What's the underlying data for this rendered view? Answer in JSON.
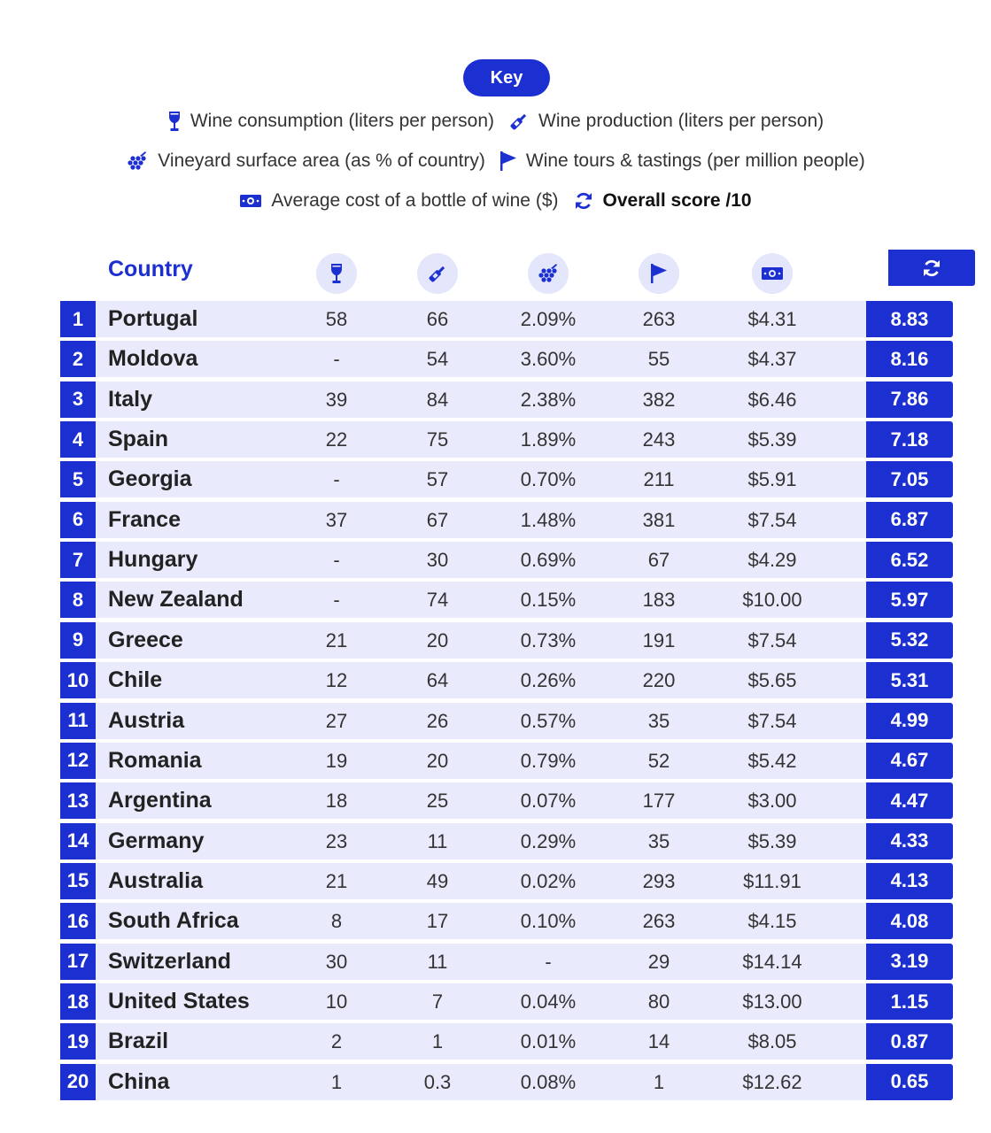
{
  "key": {
    "label": "Key",
    "items": [
      {
        "id": "consumption",
        "icon": "wine-glass-icon",
        "text": "Wine consumption (liters per person)"
      },
      {
        "id": "production",
        "icon": "wine-bottle-icon",
        "text": "Wine production (liters per person)"
      },
      {
        "id": "vineyard",
        "icon": "grapes-icon",
        "text": "Vineyard surface area (as % of country)"
      },
      {
        "id": "tours",
        "icon": "flag-icon",
        "text": "Wine tours & tastings (per million people)"
      },
      {
        "id": "cost",
        "icon": "banknote-icon",
        "text": "Average cost of a bottle of wine ($)"
      },
      {
        "id": "score",
        "icon": "refresh-icon",
        "text": "Overall score /10"
      }
    ]
  },
  "colors": {
    "accent": "#1c2fd1",
    "row_bg": "#e9eafc",
    "icon_circle": "#e4e6fb"
  },
  "chart_data": {
    "type": "table",
    "columns": [
      {
        "key": "rank",
        "label": ""
      },
      {
        "key": "country",
        "label": "Country"
      },
      {
        "key": "consumption",
        "icon": "wine-glass-icon"
      },
      {
        "key": "production",
        "icon": "wine-bottle-icon"
      },
      {
        "key": "vineyard",
        "icon": "grapes-icon"
      },
      {
        "key": "tours",
        "icon": "flag-icon"
      },
      {
        "key": "cost",
        "icon": "banknote-icon"
      },
      {
        "key": "score",
        "icon": "refresh-icon"
      }
    ],
    "rows": [
      {
        "rank": "1",
        "country": "Portugal",
        "consumption": "58",
        "production": "66",
        "vineyard": "2.09%",
        "tours": "263",
        "cost": "$4.31",
        "score": "8.83"
      },
      {
        "rank": "2",
        "country": "Moldova",
        "consumption": "-",
        "production": "54",
        "vineyard": "3.60%",
        "tours": "55",
        "cost": "$4.37",
        "score": "8.16"
      },
      {
        "rank": "3",
        "country": "Italy",
        "consumption": "39",
        "production": "84",
        "vineyard": "2.38%",
        "tours": "382",
        "cost": "$6.46",
        "score": "7.86"
      },
      {
        "rank": "4",
        "country": "Spain",
        "consumption": "22",
        "production": "75",
        "vineyard": "1.89%",
        "tours": "243",
        "cost": "$5.39",
        "score": "7.18"
      },
      {
        "rank": "5",
        "country": "Georgia",
        "consumption": "-",
        "production": "57",
        "vineyard": "0.70%",
        "tours": "211",
        "cost": "$5.91",
        "score": "7.05"
      },
      {
        "rank": "6",
        "country": "France",
        "consumption": "37",
        "production": "67",
        "vineyard": "1.48%",
        "tours": "381",
        "cost": "$7.54",
        "score": "6.87"
      },
      {
        "rank": "7",
        "country": "Hungary",
        "consumption": "-",
        "production": "30",
        "vineyard": "0.69%",
        "tours": "67",
        "cost": "$4.29",
        "score": "6.52"
      },
      {
        "rank": "8",
        "country": "New Zealand",
        "consumption": "-",
        "production": "74",
        "vineyard": "0.15%",
        "tours": "183",
        "cost": "$10.00",
        "score": "5.97"
      },
      {
        "rank": "9",
        "country": "Greece",
        "consumption": "21",
        "production": "20",
        "vineyard": "0.73%",
        "tours": "191",
        "cost": "$7.54",
        "score": "5.32"
      },
      {
        "rank": "10",
        "country": "Chile",
        "consumption": "12",
        "production": "64",
        "vineyard": "0.26%",
        "tours": "220",
        "cost": "$5.65",
        "score": "5.31"
      },
      {
        "rank": "11",
        "country": "Austria",
        "consumption": "27",
        "production": "26",
        "vineyard": "0.57%",
        "tours": "35",
        "cost": "$7.54",
        "score": "4.99"
      },
      {
        "rank": "12",
        "country": "Romania",
        "consumption": "19",
        "production": "20",
        "vineyard": "0.79%",
        "tours": "52",
        "cost": "$5.42",
        "score": "4.67"
      },
      {
        "rank": "13",
        "country": "Argentina",
        "consumption": "18",
        "production": "25",
        "vineyard": "0.07%",
        "tours": "177",
        "cost": "$3.00",
        "score": "4.47"
      },
      {
        "rank": "14",
        "country": "Germany",
        "consumption": "23",
        "production": "11",
        "vineyard": "0.29%",
        "tours": "35",
        "cost": "$5.39",
        "score": "4.33"
      },
      {
        "rank": "15",
        "country": "Australia",
        "consumption": "21",
        "production": "49",
        "vineyard": "0.02%",
        "tours": "293",
        "cost": "$11.91",
        "score": "4.13"
      },
      {
        "rank": "16",
        "country": "South Africa",
        "consumption": "8",
        "production": "17",
        "vineyard": "0.10%",
        "tours": "263",
        "cost": "$4.15",
        "score": "4.08"
      },
      {
        "rank": "17",
        "country": "Switzerland",
        "consumption": "30",
        "production": "11",
        "vineyard": "-",
        "tours": "29",
        "cost": "$14.14",
        "score": "3.19"
      },
      {
        "rank": "18",
        "country": "United States",
        "consumption": "10",
        "production": "7",
        "vineyard": "0.04%",
        "tours": "80",
        "cost": "$13.00",
        "score": "1.15"
      },
      {
        "rank": "19",
        "country": "Brazil",
        "consumption": "2",
        "production": "1",
        "vineyard": "0.01%",
        "tours": "14",
        "cost": "$8.05",
        "score": "0.87"
      },
      {
        "rank": "20",
        "country": "China",
        "consumption": "1",
        "production": "0.3",
        "vineyard": "0.08%",
        "tours": "1",
        "cost": "$12.62",
        "score": "0.65"
      }
    ]
  }
}
